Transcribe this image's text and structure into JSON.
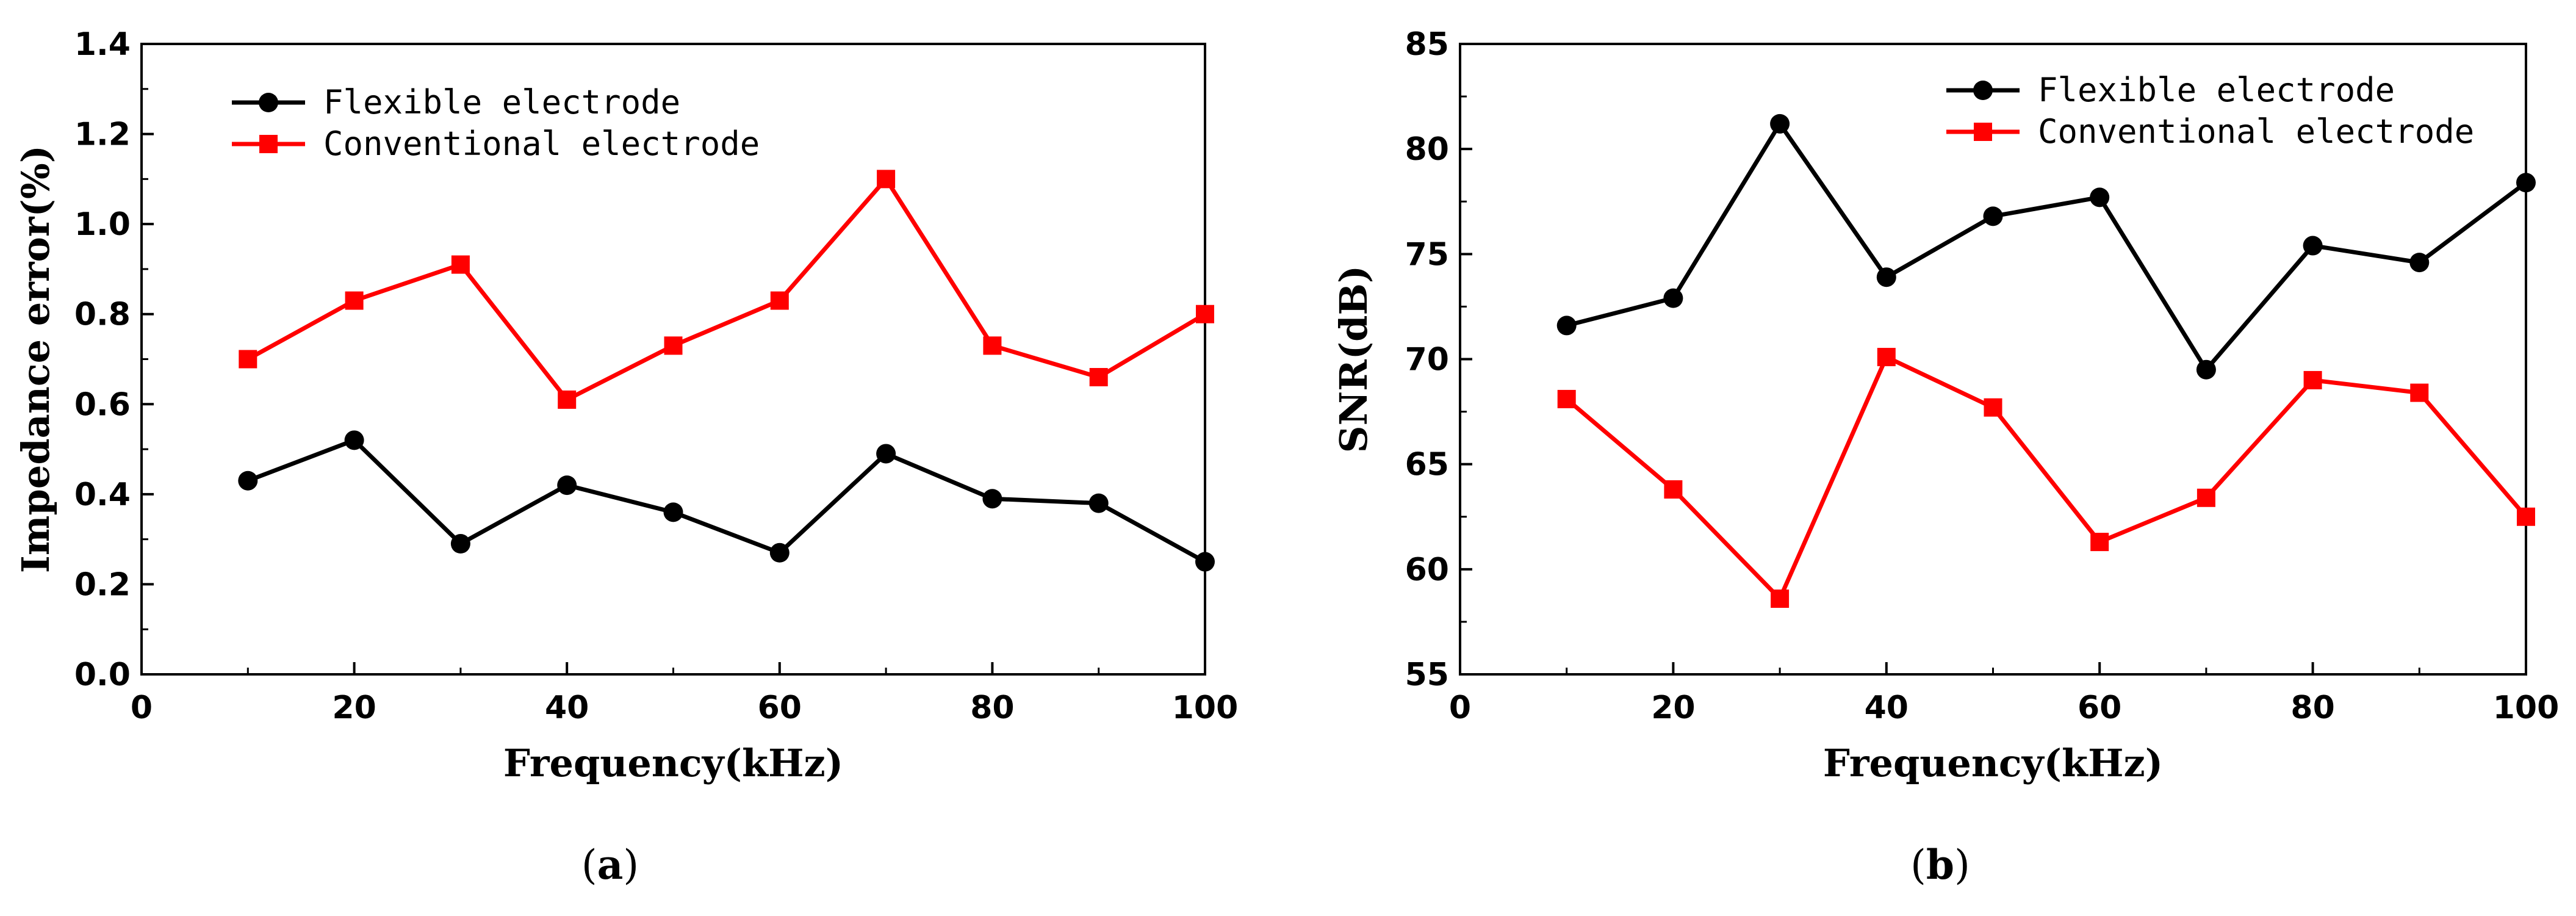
{
  "chart_data": [
    {
      "type": "line",
      "panel_label": "(a)",
      "panel_letter": "a",
      "xlabel": "Frequency(kHz)",
      "ylabel": "Impedance error(%)",
      "xlim": [
        0,
        100
      ],
      "ylim": [
        0,
        1.4
      ],
      "xticks": [
        0,
        20,
        40,
        60,
        80,
        100
      ],
      "yticks": [
        0.0,
        0.2,
        0.4,
        0.6,
        0.8,
        1.0,
        1.2,
        1.4
      ],
      "ytick_labels": [
        "0.0",
        "0.2",
        "0.4",
        "0.6",
        "0.8",
        "1.0",
        "1.2",
        "1.4"
      ],
      "grid": false,
      "legend_position": "top-left",
      "x": [
        10,
        20,
        30,
        40,
        50,
        60,
        70,
        80,
        90,
        100
      ],
      "series": [
        {
          "name": "Flexible electrode",
          "color": "#000000",
          "marker": "circle",
          "values": [
            0.43,
            0.52,
            0.29,
            0.42,
            0.36,
            0.27,
            0.49,
            0.39,
            0.38,
            0.25
          ]
        },
        {
          "name": "Conventional electrode",
          "color": "#ff0000",
          "marker": "square",
          "values": [
            0.7,
            0.83,
            0.91,
            0.61,
            0.73,
            0.83,
            1.1,
            0.73,
            0.66,
            0.8
          ]
        }
      ]
    },
    {
      "type": "line",
      "panel_label": "(b)",
      "panel_letter": "b",
      "xlabel": "Frequency(kHz)",
      "ylabel": "SNR(dB)",
      "xlim": [
        0,
        100
      ],
      "ylim": [
        55,
        85
      ],
      "xticks": [
        0,
        20,
        40,
        60,
        80,
        100
      ],
      "yticks": [
        55,
        60,
        65,
        70,
        75,
        80,
        85
      ],
      "ytick_labels": [
        "55",
        "60",
        "65",
        "70",
        "75",
        "80",
        "85"
      ],
      "grid": false,
      "legend_position": "top-right",
      "x": [
        10,
        20,
        30,
        40,
        50,
        60,
        70,
        80,
        90,
        100
      ],
      "series": [
        {
          "name": "Flexible electrode",
          "color": "#000000",
          "marker": "circle",
          "values": [
            71.6,
            72.9,
            81.2,
            73.9,
            76.8,
            77.7,
            69.5,
            75.4,
            74.6,
            78.4
          ]
        },
        {
          "name": "Conventional electrode",
          "color": "#ff0000",
          "marker": "square",
          "values": [
            68.1,
            63.8,
            58.6,
            70.1,
            67.7,
            61.3,
            63.4,
            69.0,
            68.4,
            62.5
          ]
        }
      ]
    }
  ]
}
